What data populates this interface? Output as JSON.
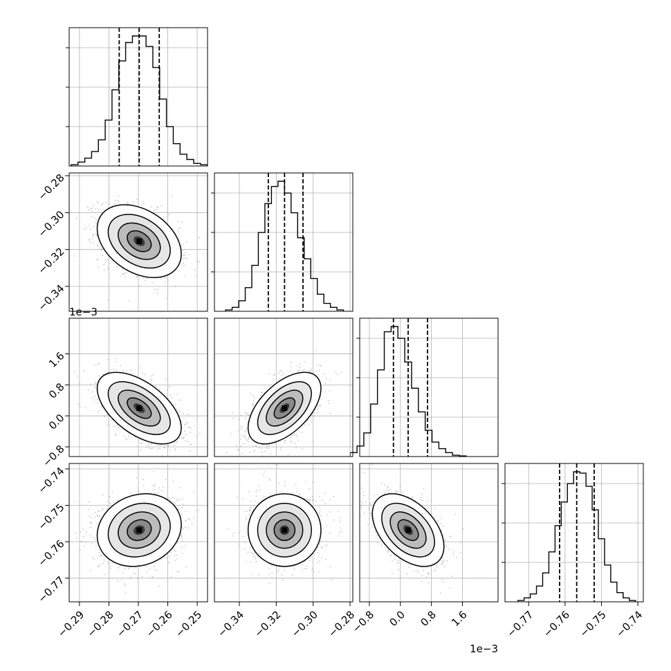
{
  "chart_data": {
    "type": "corner",
    "title": "",
    "grid": true,
    "parameters": [
      {
        "range": [
          -0.2935,
          -0.2465
        ],
        "ticks": [
          -0.29,
          -0.28,
          -0.27,
          -0.26,
          -0.25
        ],
        "tick_labels": [
          "−0.29",
          "−0.28",
          "−0.27",
          "−0.26",
          "−0.25"
        ],
        "offset_label": "",
        "quantiles": [
          -0.2765,
          -0.2697,
          -0.2629
        ],
        "histogram_values": [
          1,
          3,
          6,
          11,
          20,
          35,
          58,
          80,
          94,
          99,
          99,
          91,
          75,
          51,
          30,
          17,
          9,
          5,
          2,
          1
        ]
      },
      {
        "range": [
          -0.3535,
          -0.2785
        ],
        "ticks": [
          -0.34,
          -0.32,
          -0.3,
          -0.28
        ],
        "tick_labels": [
          "−0.34",
          "−0.32",
          "−0.30",
          "−0.28"
        ],
        "offset_label": "",
        "quantiles": [
          -0.3243,
          -0.3155,
          -0.3055
        ],
        "histogram_values": [
          1,
          3,
          8,
          18,
          35,
          60,
          82,
          95,
          99,
          90,
          75,
          56,
          40,
          25,
          13,
          6,
          3,
          1
        ]
      },
      {
        "range": [
          -1.05,
          2.52
        ],
        "ticks": [
          -0.8,
          0.0,
          0.8,
          1.6
        ],
        "tick_labels": [
          "−0.8",
          "0.0",
          "0.8",
          "1.6"
        ],
        "offset_label": "1e−3",
        "quantiles": [
          -0.18,
          0.2,
          0.7
        ],
        "histogram_values": [
          3,
          8,
          18,
          40,
          66,
          95,
          99,
          90,
          72,
          52,
          34,
          20,
          11,
          6,
          3,
          1,
          0.5
        ]
      },
      {
        "range": [
          -0.7765,
          -0.7385
        ],
        "ticks": [
          -0.77,
          -0.76,
          -0.75,
          -0.74
        ],
        "tick_labels": [
          "−0.77",
          "−0.76",
          "−0.75",
          "−0.74"
        ],
        "offset_label": "",
        "quantiles": [
          -0.7615,
          -0.7568,
          -0.752
        ],
        "histogram_values": [
          1,
          3,
          6,
          12,
          22,
          38,
          58,
          76,
          90,
          99,
          98,
          88,
          70,
          48,
          28,
          15,
          7,
          3,
          1
        ]
      }
    ],
    "pairs": [
      {
        "row": 1,
        "col": 0,
        "mean": [
          -0.2697,
          -0.3155
        ],
        "correlation": -0.35
      },
      {
        "row": 2,
        "col": 0,
        "mean": [
          -0.2697,
          0.2
        ],
        "correlation": -0.55
      },
      {
        "row": 2,
        "col": 1,
        "mean": [
          -0.3155,
          0.2
        ],
        "correlation": 0.55
      },
      {
        "row": 3,
        "col": 0,
        "mean": [
          -0.2697,
          -0.7568
        ],
        "correlation": 0.15
      },
      {
        "row": 3,
        "col": 1,
        "mean": [
          -0.3155,
          -0.7568
        ],
        "correlation": 0.0
      },
      {
        "row": 3,
        "col": 2,
        "mean": [
          0.2,
          -0.7568
        ],
        "correlation": -0.45
      }
    ]
  }
}
